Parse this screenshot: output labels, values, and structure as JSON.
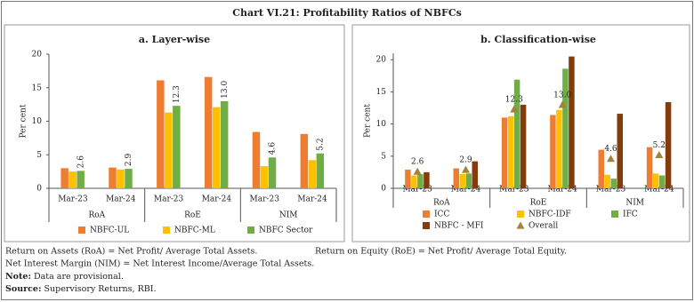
{
  "title": "Chart VI.21: Profitability Ratios of NBFCs",
  "chart_data": [
    {
      "type": "bar",
      "title": "a. Layer-wise",
      "ylabel": "Per cent",
      "categories": [
        "Mar-23",
        "Mar-24",
        "Mar-23",
        "Mar-24",
        "Mar-23",
        "Mar-24"
      ],
      "groups": [
        "RoA",
        "RoE",
        "NIM"
      ],
      "ylim": [
        0,
        20
      ],
      "yticks": [
        0,
        5,
        10,
        15,
        20
      ],
      "series": [
        {
          "name": "NBFC-UL",
          "color": "#ed7d31",
          "values": [
            3.0,
            3.1,
            16.1,
            16.6,
            8.4,
            8.1
          ]
        },
        {
          "name": "NBFC-ML",
          "color": "#ffc000",
          "values": [
            2.5,
            2.8,
            11.3,
            12.1,
            3.3,
            4.2
          ]
        },
        {
          "name": "NBFC Sector",
          "color": "#70ad47",
          "values": [
            2.6,
            2.9,
            12.3,
            13.0,
            4.6,
            5.2
          ],
          "value_labels": [
            "2.6",
            "2.9",
            "12.3",
            "13.0",
            "4.6",
            "5.2"
          ]
        }
      ]
    },
    {
      "type": "bar",
      "title": "b. Classification-wise",
      "ylabel": "Per cent",
      "categories": [
        "Mar-23",
        "Mar-24",
        "Mar-23",
        "Mar-24",
        "Mar-23",
        "Mar-24"
      ],
      "groups": [
        "RoA",
        "RoE",
        "NIM"
      ],
      "ylim": [
        0,
        21
      ],
      "yticks": [
        0,
        5,
        10,
        15,
        20
      ],
      "series": [
        {
          "name": "ICC",
          "color": "#ed7d31",
          "values": [
            2.9,
            3.1,
            11.0,
            11.4,
            6.0,
            6.4
          ]
        },
        {
          "name": "NBFC-IDF",
          "color": "#ffc000",
          "values": [
            2.0,
            2.2,
            11.2,
            12.2,
            2.1,
            2.3
          ]
        },
        {
          "name": "IFC",
          "color": "#70ad47",
          "values": [
            2.2,
            2.3,
            16.9,
            18.6,
            1.5,
            2.0
          ]
        },
        {
          "name": "NBFC - MFI",
          "color": "#843c0c",
          "values": [
            2.5,
            4.2,
            13.0,
            20.5,
            11.6,
            13.4
          ]
        },
        {
          "name": "Overall",
          "color": "#a5823a",
          "marker": "triangle",
          "values": [
            2.6,
            2.9,
            12.3,
            13.0,
            4.6,
            5.2
          ],
          "value_labels": [
            "2.6",
            "2.9",
            "12.3",
            "13.0",
            "4.6",
            "5.2"
          ]
        }
      ]
    }
  ],
  "notes": [
    {
      "text": "Return on Assets (RoA) = Net Profit/ Average Total Assets."
    },
    {
      "text": "Return on Equity (RoE) = Net Profit/ Average Total Equity."
    },
    {
      "text": "Net Interest Margin (NIM) = Net Interest Income/Average Total Assets."
    },
    {
      "label": "Note:",
      "text": "Data are provisional."
    },
    {
      "label": "Source:",
      "text": "Supervisory Returns, RBI."
    }
  ]
}
